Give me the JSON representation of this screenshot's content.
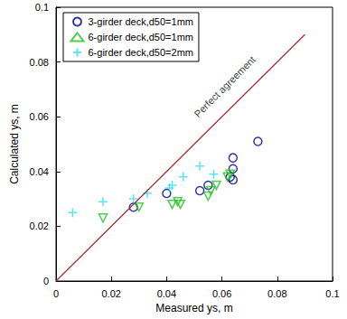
{
  "chart_data": {
    "type": "scatter",
    "x_label": "Measured ys, m",
    "y_label": "Calculated ys, m",
    "xlim": [
      0,
      0.1
    ],
    "xticks": [
      0,
      0.02,
      0.04,
      0.06,
      0.08,
      0.1
    ],
    "ylim": [
      0,
      0.1
    ],
    "yticks": [
      0,
      0.02,
      0.04,
      0.06,
      0.08,
      0.1
    ],
    "grid": false,
    "legend": "upper left",
    "series": [
      {
        "name": "3-girder deck,d50=1mm",
        "color": "#00008b",
        "marker": "circle",
        "x": [
          0.028,
          0.04,
          0.052,
          0.055,
          0.063,
          0.064,
          0.064,
          0.064,
          0.073
        ],
        "values": [
          0.027,
          0.032,
          0.033,
          0.035,
          0.038,
          0.041,
          0.045,
          0.037,
          0.051
        ]
      },
      {
        "name": "6-girder deck,d50=1mm",
        "color": "#22c022",
        "marker": "triangle_down",
        "x": [
          0.017,
          0.03,
          0.042,
          0.044,
          0.045,
          0.055,
          0.056,
          0.058,
          0.062,
          0.063
        ],
        "values": [
          0.023,
          0.027,
          0.028,
          0.029,
          0.028,
          0.031,
          0.033,
          0.035,
          0.038,
          0.039
        ]
      },
      {
        "name": "6-girder deck,d50=2mm",
        "color": "#33ddee",
        "marker": "plus",
        "x": [
          0.006,
          0.017,
          0.028,
          0.033,
          0.041,
          0.042,
          0.046,
          0.052,
          0.057
        ],
        "values": [
          0.025,
          0.029,
          0.03,
          0.032,
          0.034,
          0.035,
          0.038,
          0.042,
          0.039
        ]
      }
    ],
    "reference_line": {
      "color": "#a52a2a",
      "x": [
        0,
        0.09
      ],
      "values": [
        0,
        0.09
      ]
    },
    "annotations": [
      {
        "text": "Perfect agreement",
        "x": 0.061,
        "y": 0.071
      }
    ]
  }
}
